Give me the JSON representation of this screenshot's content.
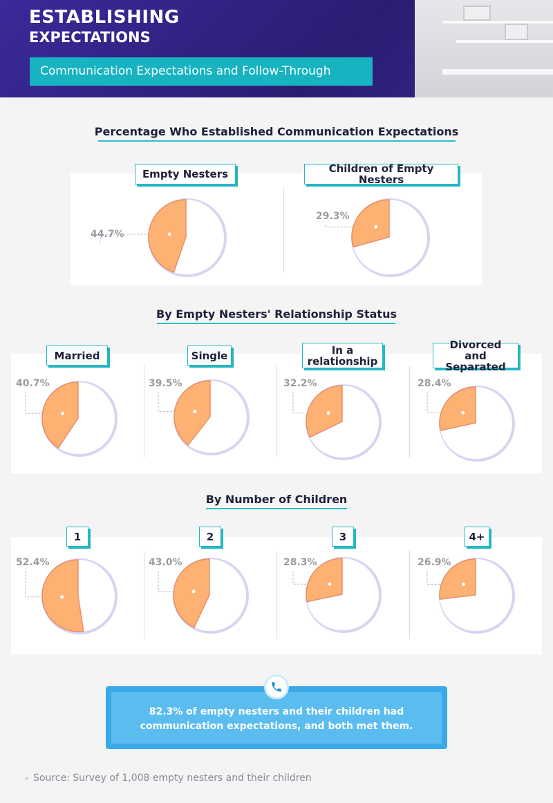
{
  "header": {
    "title_line1": "ESTABLISHING",
    "title_line2": "EXPECTATIONS",
    "subtitle": "Communication Expectations and Follow-Through"
  },
  "sections": {
    "s1": "Percentage Who Established Communication Expectations",
    "s2": "By Empty Nesters' Relationship Status",
    "s3": "By Number of Children"
  },
  "colors": {
    "slice": "#fdb173",
    "slice_stroke": "#e58f6b",
    "ring": "#d9d3f2",
    "accent": "#23b7c4"
  },
  "chart_data": [
    {
      "type": "pie",
      "title": "Percentage Who Established Communication Expectations",
      "categories": [
        "Empty Nesters",
        "Children of Empty Nesters"
      ],
      "values": [
        44.7,
        29.3
      ],
      "labels": [
        "44.7%",
        "29.3%"
      ]
    },
    {
      "type": "pie",
      "title": "By Empty Nesters' Relationship Status",
      "categories": [
        "Married",
        "Single",
        "In a relationship",
        "Divorced and Separated"
      ],
      "values": [
        40.7,
        39.5,
        32.2,
        28.4
      ],
      "labels": [
        "40.7%",
        "39.5%",
        "32.2%",
        "28.4%"
      ]
    },
    {
      "type": "pie",
      "title": "By Number of Children",
      "categories": [
        "1",
        "2",
        "3",
        "4+"
      ],
      "values": [
        52.4,
        43.0,
        28.3,
        26.9
      ],
      "labels": [
        "52.4%",
        "43.0%",
        "28.3%",
        "26.9%"
      ]
    }
  ],
  "tags": {
    "empty_nesters": "Empty Nesters",
    "children": "Children of Empty Nesters",
    "married": "Married",
    "single": "Single",
    "relationship_l1": "In a",
    "relationship_l2": "relationship",
    "divorced_l1": "Divorced",
    "divorced_l2": "and Separated",
    "c1": "1",
    "c2": "2",
    "c3": "3",
    "c4": "4+"
  },
  "callout": {
    "text": "82.3% of empty nesters and their children had communication expectations, and both met them.",
    "icon": "phone-icon"
  },
  "source": "Source: Survey of 1,008 empty nesters and their children"
}
